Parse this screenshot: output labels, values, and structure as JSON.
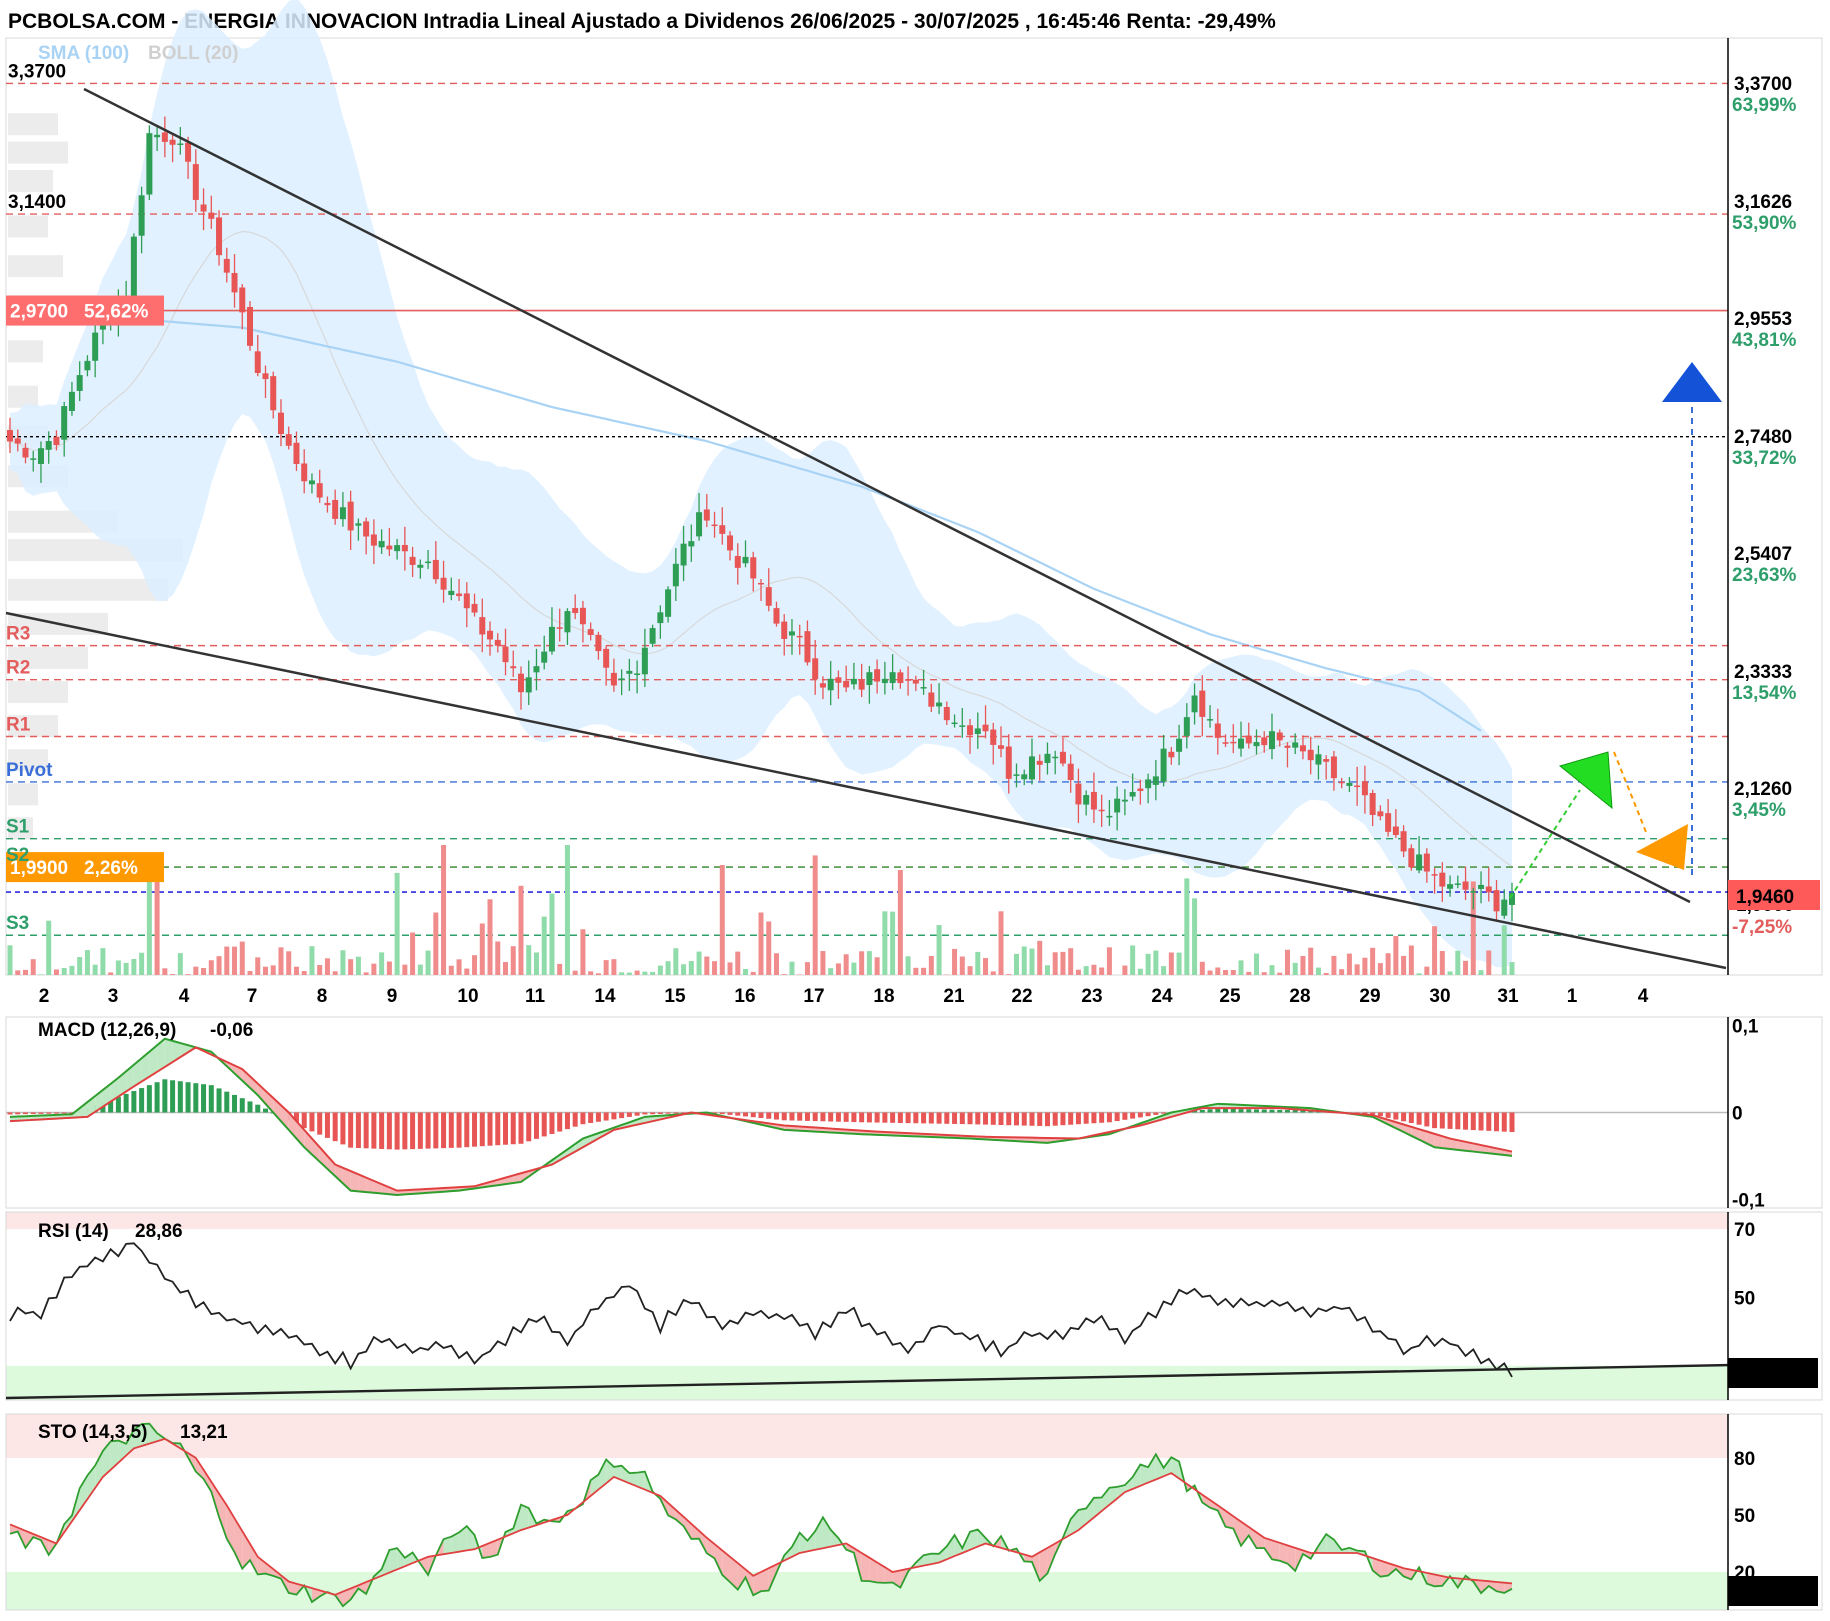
{
  "header": {
    "title": "PCBOLSA.COM - ENERGIA INNOVACION Intradia Lineal Ajustado a Dividenos 26/06/2025 - 30/07/2025 , 16:45:46 Renta: -29,49%"
  },
  "overlay_labels": {
    "sma": "SMA (100)",
    "boll": "BOLL (20)"
  },
  "colors": {
    "up": "#2e9e55",
    "down": "#e85555",
    "band": "#dcefff",
    "sma": "#a9d3f5",
    "pivot": "#3a6fd8",
    "resist": "#e35d5d",
    "support": "#2e9e6a",
    "orange": "#ff9900"
  },
  "chart_data": [
    {
      "type": "candlestick",
      "name": "price",
      "ylim": [
        1.8,
        3.45
      ],
      "x_labels": [
        "2",
        "3",
        "4",
        "7",
        "8",
        "9",
        "10",
        "11",
        "14",
        "15",
        "16",
        "17",
        "18",
        "21",
        "22",
        "23",
        "24",
        "25",
        "28",
        "29",
        "30",
        "31",
        "1",
        "4"
      ],
      "right_ticks": [
        {
          "value": "3,3700",
          "pct": "63,99%"
        },
        {
          "value": "3,1626",
          "pct": "53,90%"
        },
        {
          "value": "2,9553",
          "pct": "43,81%"
        },
        {
          "value": "2,7480",
          "pct": "33,72%"
        },
        {
          "value": "2,5407",
          "pct": "23,63%"
        },
        {
          "value": "2,3333",
          "pct": "13,54%"
        },
        {
          "value": "2,1260",
          "pct": "3,45%"
        }
      ],
      "right_bottom_pct": "-7,25%",
      "last_price": "1,9460",
      "hidden_tick": "1,9000",
      "left_labels": [
        {
          "text": "3,3700",
          "y": 3.37
        },
        {
          "text": "3,1400",
          "y": 3.14
        }
      ],
      "highlighted_levels": [
        {
          "value": "2,9700",
          "pct": "52,62%",
          "y": 2.97,
          "color": "red"
        },
        {
          "value": "1,9900",
          "pct": "2,26%",
          "y": 1.99,
          "color": "orange"
        }
      ],
      "pivot_levels": [
        {
          "name": "R3",
          "y": 2.38
        },
        {
          "name": "R2",
          "y": 2.32
        },
        {
          "name": "R1",
          "y": 2.22
        },
        {
          "name": "Pivot",
          "y": 2.14
        },
        {
          "name": "S1",
          "y": 2.04
        },
        {
          "name": "S2",
          "y": 1.99
        },
        {
          "name": "S3",
          "y": 1.87
        }
      ],
      "close_anchors": [
        [
          0,
          2.74
        ],
        [
          3,
          2.72
        ],
        [
          6,
          2.75
        ],
        [
          9,
          2.86
        ],
        [
          12,
          2.95
        ],
        [
          15,
          3.0
        ],
        [
          18,
          3.28
        ],
        [
          21,
          3.28
        ],
        [
          24,
          3.18
        ],
        [
          27,
          3.08
        ],
        [
          30,
          2.96
        ],
        [
          33,
          2.83
        ],
        [
          36,
          2.73
        ],
        [
          39,
          2.66
        ],
        [
          42,
          2.62
        ],
        [
          45,
          2.58
        ],
        [
          48,
          2.56
        ],
        [
          51,
          2.54
        ],
        [
          54,
          2.53
        ],
        [
          57,
          2.48
        ],
        [
          60,
          2.42
        ],
        [
          63,
          2.38
        ],
        [
          66,
          2.3
        ],
        [
          69,
          2.38
        ],
        [
          72,
          2.45
        ],
        [
          75,
          2.38
        ],
        [
          78,
          2.3
        ],
        [
          81,
          2.35
        ],
        [
          84,
          2.45
        ],
        [
          87,
          2.55
        ],
        [
          90,
          2.62
        ],
        [
          93,
          2.55
        ],
        [
          96,
          2.5
        ],
        [
          99,
          2.42
        ],
        [
          102,
          2.38
        ],
        [
          105,
          2.32
        ],
        [
          108,
          2.3
        ],
        [
          111,
          2.32
        ],
        [
          114,
          2.35
        ],
        [
          117,
          2.3
        ],
        [
          120,
          2.28
        ],
        [
          123,
          2.24
        ],
        [
          126,
          2.24
        ],
        [
          129,
          2.16
        ],
        [
          132,
          2.18
        ],
        [
          135,
          2.2
        ],
        [
          138,
          2.12
        ],
        [
          141,
          2.08
        ],
        [
          144,
          2.1
        ],
        [
          147,
          2.15
        ],
        [
          150,
          2.2
        ],
        [
          153,
          2.3
        ],
        [
          156,
          2.22
        ],
        [
          159,
          2.2
        ],
        [
          162,
          2.22
        ],
        [
          165,
          2.2
        ],
        [
          168,
          2.18
        ],
        [
          171,
          2.15
        ],
        [
          174,
          2.12
        ],
        [
          177,
          2.06
        ],
        [
          180,
          2.02
        ],
        [
          183,
          1.98
        ],
        [
          186,
          1.95
        ],
        [
          189,
          1.95
        ],
        [
          192,
          1.93
        ],
        [
          194,
          1.946
        ]
      ],
      "volume_bars": 195
    },
    {
      "type": "line",
      "name": "MACD (12,26,9)",
      "label": "MACD (12,26,9)",
      "value": "-0,06",
      "ylim": [
        -0.11,
        0.11
      ],
      "ticks": [
        {
          "text": "0,1",
          "value": 0.1,
          "color": "red"
        },
        {
          "text": "0",
          "value": 0,
          "color": "black"
        },
        {
          "text": "-0,1",
          "value": -0.1,
          "color": "green"
        }
      ],
      "macd_anchors": [
        [
          0,
          -0.005
        ],
        [
          8,
          -0.002
        ],
        [
          14,
          0.04
        ],
        [
          20,
          0.085
        ],
        [
          26,
          0.07
        ],
        [
          32,
          0.02
        ],
        [
          38,
          -0.04
        ],
        [
          44,
          -0.09
        ],
        [
          50,
          -0.095
        ],
        [
          58,
          -0.09
        ],
        [
          66,
          -0.08
        ],
        [
          74,
          -0.03
        ],
        [
          82,
          -0.005
        ],
        [
          90,
          0
        ],
        [
          100,
          -0.02
        ],
        [
          110,
          -0.025
        ],
        [
          124,
          -0.03
        ],
        [
          134,
          -0.035
        ],
        [
          142,
          -0.025
        ],
        [
          150,
          0.0
        ],
        [
          156,
          0.01
        ],
        [
          168,
          0.005
        ],
        [
          176,
          -0.005
        ],
        [
          184,
          -0.04
        ],
        [
          194,
          -0.05
        ]
      ],
      "signal_anchors": [
        [
          0,
          -0.01
        ],
        [
          10,
          -0.005
        ],
        [
          16,
          0.03
        ],
        [
          24,
          0.075
        ],
        [
          30,
          0.05
        ],
        [
          36,
          0.0
        ],
        [
          42,
          -0.06
        ],
        [
          50,
          -0.09
        ],
        [
          60,
          -0.085
        ],
        [
          70,
          -0.06
        ],
        [
          78,
          -0.02
        ],
        [
          88,
          0.0
        ],
        [
          100,
          -0.015
        ],
        [
          112,
          -0.022
        ],
        [
          126,
          -0.028
        ],
        [
          138,
          -0.03
        ],
        [
          146,
          -0.015
        ],
        [
          154,
          0.005
        ],
        [
          164,
          0.005
        ],
        [
          176,
          -0.003
        ],
        [
          186,
          -0.03
        ],
        [
          194,
          -0.045
        ]
      ]
    },
    {
      "type": "line",
      "name": "RSI (14)",
      "label": "RSI (14)",
      "value": "28,86",
      "last_value": "28,863",
      "ylim": [
        20,
        75
      ],
      "ticks": [
        {
          "text": "70",
          "value": 70,
          "color": "red"
        },
        {
          "text": "50",
          "value": 50,
          "color": "black"
        }
      ],
      "anchors": [
        [
          0,
          45
        ],
        [
          4,
          46
        ],
        [
          8,
          58
        ],
        [
          12,
          62
        ],
        [
          16,
          66
        ],
        [
          20,
          56
        ],
        [
          24,
          48
        ],
        [
          28,
          44
        ],
        [
          32,
          41
        ],
        [
          36,
          40
        ],
        [
          40,
          34
        ],
        [
          44,
          31
        ],
        [
          48,
          38
        ],
        [
          52,
          34
        ],
        [
          56,
          36
        ],
        [
          60,
          31
        ],
        [
          64,
          38
        ],
        [
          68,
          45
        ],
        [
          72,
          37
        ],
        [
          76,
          48
        ],
        [
          80,
          54
        ],
        [
          84,
          42
        ],
        [
          88,
          50
        ],
        [
          92,
          41
        ],
        [
          96,
          46
        ],
        [
          100,
          44
        ],
        [
          104,
          40
        ],
        [
          108,
          47
        ],
        [
          112,
          40
        ],
        [
          116,
          35
        ],
        [
          120,
          42
        ],
        [
          124,
          38
        ],
        [
          128,
          34
        ],
        [
          132,
          40
        ],
        [
          136,
          38
        ],
        [
          140,
          44
        ],
        [
          144,
          38
        ],
        [
          148,
          46
        ],
        [
          152,
          52
        ],
        [
          156,
          50
        ],
        [
          160,
          48
        ],
        [
          164,
          49
        ],
        [
          168,
          45
        ],
        [
          172,
          48
        ],
        [
          176,
          42
        ],
        [
          180,
          34
        ],
        [
          184,
          38
        ],
        [
          188,
          35
        ],
        [
          192,
          30
        ],
        [
          194,
          28.86
        ]
      ]
    },
    {
      "type": "line",
      "name": "STO (14,3,5)",
      "label": "STO (14,3,5)",
      "value": "13,21",
      "last_value": "13,215",
      "ylim": [
        0,
        100
      ],
      "ticks": [
        {
          "text": "80",
          "value": 80,
          "color": "red"
        },
        {
          "text": "50",
          "value": 50,
          "color": "black"
        },
        {
          "text": "20",
          "value": 20,
          "color": "black"
        }
      ],
      "k_anchors": [
        [
          0,
          40
        ],
        [
          5,
          30
        ],
        [
          10,
          70
        ],
        [
          14,
          90
        ],
        [
          18,
          95
        ],
        [
          22,
          85
        ],
        [
          26,
          60
        ],
        [
          30,
          25
        ],
        [
          34,
          15
        ],
        [
          38,
          10
        ],
        [
          42,
          5
        ],
        [
          46,
          10
        ],
        [
          50,
          35
        ],
        [
          54,
          20
        ],
        [
          58,
          45
        ],
        [
          62,
          25
        ],
        [
          66,
          55
        ],
        [
          70,
          45
        ],
        [
          74,
          60
        ],
        [
          78,
          80
        ],
        [
          82,
          70
        ],
        [
          86,
          45
        ],
        [
          90,
          30
        ],
        [
          94,
          15
        ],
        [
          98,
          10
        ],
        [
          102,
          40
        ],
        [
          106,
          45
        ],
        [
          110,
          20
        ],
        [
          114,
          10
        ],
        [
          118,
          25
        ],
        [
          122,
          35
        ],
        [
          126,
          40
        ],
        [
          130,
          30
        ],
        [
          134,
          15
        ],
        [
          138,
          55
        ],
        [
          142,
          65
        ],
        [
          146,
          75
        ],
        [
          150,
          80
        ],
        [
          154,
          55
        ],
        [
          158,
          40
        ],
        [
          162,
          30
        ],
        [
          166,
          25
        ],
        [
          170,
          35
        ],
        [
          174,
          30
        ],
        [
          178,
          20
        ],
        [
          182,
          18
        ],
        [
          186,
          15
        ],
        [
          190,
          13
        ],
        [
          194,
          13.2
        ]
      ],
      "d_anchors": [
        [
          0,
          45
        ],
        [
          6,
          35
        ],
        [
          12,
          70
        ],
        [
          16,
          85
        ],
        [
          20,
          90
        ],
        [
          24,
          80
        ],
        [
          28,
          55
        ],
        [
          32,
          28
        ],
        [
          36,
          15
        ],
        [
          42,
          8
        ],
        [
          48,
          18
        ],
        [
          54,
          28
        ],
        [
          60,
          32
        ],
        [
          66,
          42
        ],
        [
          72,
          50
        ],
        [
          78,
          70
        ],
        [
          84,
          60
        ],
        [
          90,
          38
        ],
        [
          96,
          18
        ],
        [
          102,
          30
        ],
        [
          108,
          35
        ],
        [
          114,
          20
        ],
        [
          120,
          25
        ],
        [
          126,
          35
        ],
        [
          132,
          28
        ],
        [
          138,
          42
        ],
        [
          144,
          62
        ],
        [
          150,
          72
        ],
        [
          156,
          55
        ],
        [
          162,
          38
        ],
        [
          168,
          30
        ],
        [
          174,
          30
        ],
        [
          180,
          22
        ],
        [
          186,
          17
        ],
        [
          194,
          14
        ]
      ]
    }
  ]
}
